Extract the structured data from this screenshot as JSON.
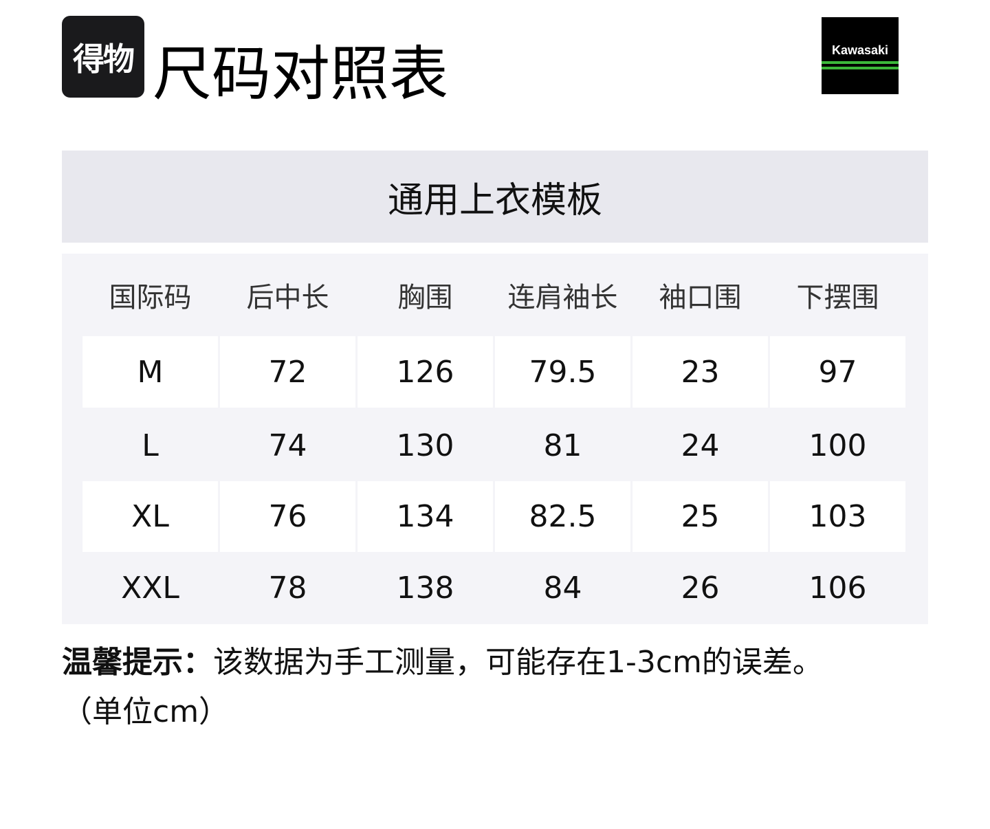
{
  "header": {
    "logo_text": "得物",
    "title": "尺码对照表",
    "brand_logo": "Kawasaki"
  },
  "banner": "通用上衣模板",
  "table": {
    "columns": [
      "国际码",
      "后中长",
      "胸围",
      "连肩袖长",
      "袖口围",
      "下摆围"
    ],
    "rows": [
      [
        "M",
        "72",
        "126",
        "79.5",
        "23",
        "97"
      ],
      [
        "L",
        "74",
        "130",
        "81",
        "24",
        "100"
      ],
      [
        "XL",
        "76",
        "134",
        "82.5",
        "25",
        "103"
      ],
      [
        "XXL",
        "78",
        "138",
        "84",
        "26",
        "106"
      ]
    ]
  },
  "note": {
    "label": "温馨提示：",
    "text": "该数据为手工测量，可能存在1-3cm的误差。",
    "unit": "（单位cm）"
  },
  "colors": {
    "banner_bg": "#e8e8ee",
    "table_bg": "#f4f4f8",
    "brand_green": "#3cb83a"
  }
}
